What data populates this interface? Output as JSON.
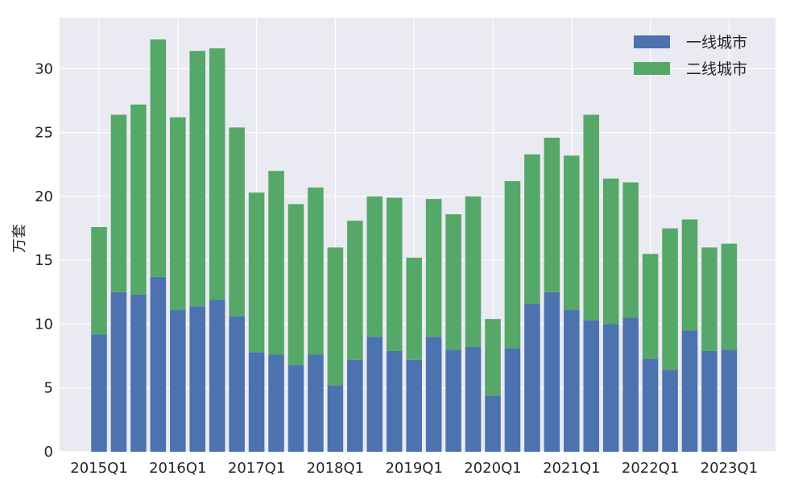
{
  "chart_data": {
    "type": "bar",
    "stacked": true,
    "title": "",
    "xlabel": "",
    "ylabel": "万套",
    "ylim": [
      0,
      34
    ],
    "yticks": [
      0,
      5,
      10,
      15,
      20,
      25,
      30
    ],
    "grid": true,
    "legend_position": "top-right",
    "categories": [
      "2015Q1",
      "2015Q2",
      "2015Q3",
      "2015Q4",
      "2016Q1",
      "2016Q2",
      "2016Q3",
      "2016Q4",
      "2017Q1",
      "2017Q2",
      "2017Q3",
      "2017Q4",
      "2018Q1",
      "2018Q2",
      "2018Q3",
      "2018Q4",
      "2019Q1",
      "2019Q2",
      "2019Q3",
      "2019Q4",
      "2020Q1",
      "2020Q2",
      "2020Q3",
      "2020Q4",
      "2021Q1",
      "2021Q2",
      "2021Q3",
      "2021Q4",
      "2022Q1",
      "2022Q2",
      "2022Q3",
      "2022Q4",
      "2023Q1"
    ],
    "xtick_labels": [
      "2015Q1",
      "2016Q1",
      "2017Q1",
      "2018Q1",
      "2019Q1",
      "2020Q1",
      "2021Q1",
      "2022Q1",
      "2023Q1"
    ],
    "series": [
      {
        "name": "一线城市",
        "color": "#4c72b0",
        "values": [
          9.2,
          12.5,
          12.3,
          13.7,
          11.1,
          11.4,
          11.9,
          10.6,
          7.8,
          7.6,
          6.8,
          7.6,
          5.2,
          7.2,
          9.0,
          7.9,
          7.2,
          9.0,
          8.0,
          8.2,
          4.4,
          8.1,
          11.6,
          12.5,
          11.1,
          10.3,
          10.0,
          10.5,
          7.3,
          6.4,
          9.5,
          7.9,
          8.0
        ]
      },
      {
        "name": "二线城市",
        "color": "#55a868",
        "values": [
          8.4,
          13.9,
          14.9,
          18.6,
          15.1,
          20.0,
          19.7,
          14.8,
          12.5,
          14.4,
          12.6,
          13.1,
          10.8,
          10.9,
          11.0,
          12.0,
          8.0,
          10.8,
          10.6,
          11.8,
          6.0,
          13.1,
          11.7,
          12.1,
          12.1,
          16.1,
          11.4,
          10.6,
          8.2,
          11.1,
          8.7,
          8.1,
          8.3
        ]
      }
    ],
    "colors": {
      "plot_background": "#eaeaf2",
      "grid": "#ffffff",
      "text": "#262626"
    }
  }
}
